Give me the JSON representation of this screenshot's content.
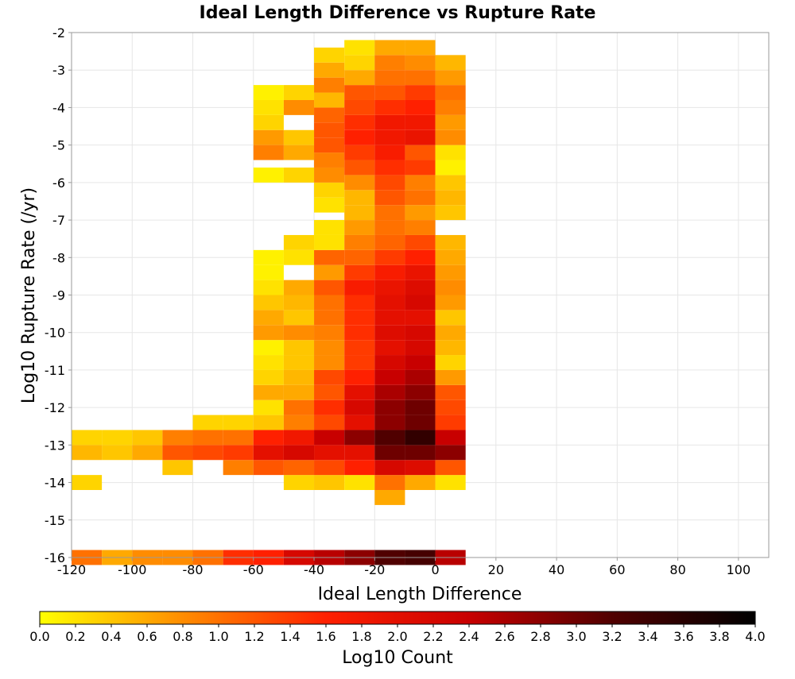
{
  "chart_data": {
    "type": "heatmap",
    "title": "Ideal Length Difference vs Rupture Rate",
    "xlabel": "Ideal Length Difference",
    "ylabel": "Log10 Rupture Rate (/yr)",
    "xlim": [
      -120,
      110
    ],
    "ylim": [
      -16,
      -2
    ],
    "x_ticks": [
      "-120",
      "-100",
      "-80",
      "-60",
      "-40",
      "-20",
      "0",
      "20",
      "40",
      "60",
      "80",
      "100"
    ],
    "y_ticks": [
      "-2",
      "-3",
      "-4",
      "-5",
      "-6",
      "-7",
      "-8",
      "-9",
      "-10",
      "-11",
      "-12",
      "-13",
      "-14",
      "-15",
      "-16"
    ],
    "grid": true,
    "bin_width_x": 10,
    "bin_height_y": 0.4,
    "colorbar": {
      "label": "Log10 Count",
      "range": [
        0,
        4
      ],
      "ticks": [
        "0.0",
        "0.2",
        "0.4",
        "0.6",
        "0.8",
        "1.0",
        "1.2",
        "1.4",
        "1.6",
        "1.8",
        "2.0",
        "2.2",
        "2.4",
        "2.6",
        "2.8",
        "3.0",
        "3.2",
        "3.4",
        "3.6",
        "3.8",
        "4.0"
      ],
      "colormap": [
        "#ffff00",
        "#ff8c00",
        "#ff2000",
        "#c80000",
        "#500000",
        "#000000"
      ]
    },
    "columns": [
      {
        "x": -115,
        "cells": [
          [
            -16.0,
            1.0
          ],
          [
            -14.0,
            0.3
          ],
          [
            -13.2,
            0.5
          ],
          [
            -12.8,
            0.3
          ]
        ]
      },
      {
        "x": -105,
        "cells": [
          [
            -16.0,
            0.6
          ],
          [
            -13.2,
            0.4
          ],
          [
            -12.8,
            0.3
          ]
        ]
      },
      {
        "x": -95,
        "cells": [
          [
            -16.0,
            0.8
          ],
          [
            -13.2,
            0.6
          ],
          [
            -12.8,
            0.4
          ]
        ]
      },
      {
        "x": -85,
        "cells": [
          [
            -16.0,
            0.8
          ],
          [
            -13.6,
            0.4
          ],
          [
            -13.2,
            1.2
          ],
          [
            -12.8,
            0.9
          ]
        ]
      },
      {
        "x": -75,
        "cells": [
          [
            -16.0,
            1.0
          ],
          [
            -13.2,
            1.3
          ],
          [
            -12.8,
            1.0
          ],
          [
            -12.4,
            0.3
          ]
        ]
      },
      {
        "x": -65,
        "cells": [
          [
            -16.0,
            1.5
          ],
          [
            -13.6,
            0.9
          ],
          [
            -13.2,
            1.4
          ],
          [
            -12.8,
            1.0
          ],
          [
            -12.4,
            0.3
          ]
        ]
      },
      {
        "x": -55,
        "cells": [
          [
            -16.0,
            1.6
          ],
          [
            -13.6,
            1.2
          ],
          [
            -13.2,
            2.0
          ],
          [
            -12.8,
            1.6
          ],
          [
            -12.4,
            0.4
          ],
          [
            -12.0,
            0.2
          ],
          [
            -11.6,
            0.6
          ],
          [
            -11.2,
            0.3
          ],
          [
            -10.8,
            0.2
          ],
          [
            -10.4,
            0.1
          ],
          [
            -10.0,
            0.7
          ],
          [
            -9.6,
            0.6
          ],
          [
            -9.2,
            0.4
          ],
          [
            -8.8,
            0.2
          ],
          [
            -8.4,
            0.1
          ],
          [
            -8.0,
            0.1
          ],
          [
            -5.8,
            0.1
          ],
          [
            -5.2,
            0.9
          ],
          [
            -4.8,
            0.7
          ],
          [
            -4.4,
            0.3
          ],
          [
            -4.0,
            0.2
          ],
          [
            -3.6,
            0.1
          ]
        ]
      },
      {
        "x": -45,
        "cells": [
          [
            -16.0,
            2.2
          ],
          [
            -14.0,
            0.3
          ],
          [
            -13.6,
            1.1
          ],
          [
            -13.2,
            2.2
          ],
          [
            -12.8,
            1.8
          ],
          [
            -12.4,
            0.9
          ],
          [
            -12.0,
            1.0
          ],
          [
            -11.6,
            0.6
          ],
          [
            -11.2,
            0.5
          ],
          [
            -10.8,
            0.4
          ],
          [
            -10.4,
            0.4
          ],
          [
            -10.0,
            0.8
          ],
          [
            -9.6,
            0.4
          ],
          [
            -9.2,
            0.5
          ],
          [
            -8.8,
            0.6
          ],
          [
            -8.0,
            0.2
          ],
          [
            -7.6,
            0.3
          ],
          [
            -5.8,
            0.3
          ],
          [
            -5.2,
            0.6
          ],
          [
            -4.8,
            0.4
          ],
          [
            -4.0,
            0.8
          ],
          [
            -3.6,
            0.3
          ]
        ]
      },
      {
        "x": -35,
        "cells": [
          [
            -16.0,
            2.5
          ],
          [
            -14.0,
            0.4
          ],
          [
            -13.6,
            1.3
          ],
          [
            -13.2,
            2.0
          ],
          [
            -12.8,
            2.4
          ],
          [
            -12.4,
            1.3
          ],
          [
            -12.0,
            1.5
          ],
          [
            -11.6,
            1.2
          ],
          [
            -11.2,
            1.3
          ],
          [
            -10.8,
            0.8
          ],
          [
            -10.4,
            0.8
          ],
          [
            -10.0,
            0.9
          ],
          [
            -9.6,
            1.0
          ],
          [
            -9.2,
            1.0
          ],
          [
            -8.8,
            1.2
          ],
          [
            -8.4,
            0.7
          ],
          [
            -8.0,
            1.1
          ],
          [
            -7.6,
            0.2
          ],
          [
            -7.2,
            0.2
          ],
          [
            -6.6,
            0.2
          ],
          [
            -6.2,
            0.3
          ],
          [
            -5.8,
            0.8
          ],
          [
            -5.4,
            0.9
          ],
          [
            -5.0,
            1.2
          ],
          [
            -4.6,
            1.2
          ],
          [
            -4.2,
            1.1
          ],
          [
            -3.8,
            0.5
          ],
          [
            -3.4,
            0.9
          ],
          [
            -3.0,
            0.6
          ],
          [
            -2.6,
            0.3
          ]
        ]
      },
      {
        "x": -25,
        "cells": [
          [
            -16.0,
            2.8
          ],
          [
            -14.0,
            0.2
          ],
          [
            -13.6,
            1.6
          ],
          [
            -13.2,
            2.0
          ],
          [
            -12.8,
            2.8
          ],
          [
            -12.4,
            2.0
          ],
          [
            -12.0,
            2.2
          ],
          [
            -11.6,
            2.0
          ],
          [
            -11.2,
            1.6
          ],
          [
            -10.8,
            1.4
          ],
          [
            -10.4,
            1.4
          ],
          [
            -10.0,
            1.5
          ],
          [
            -9.6,
            1.5
          ],
          [
            -9.2,
            1.5
          ],
          [
            -8.8,
            1.7
          ],
          [
            -8.4,
            1.4
          ],
          [
            -8.0,
            1.1
          ],
          [
            -7.6,
            0.9
          ],
          [
            -7.2,
            0.7
          ],
          [
            -6.8,
            0.5
          ],
          [
            -6.4,
            0.5
          ],
          [
            -6.0,
            0.8
          ],
          [
            -5.6,
            1.2
          ],
          [
            -5.2,
            1.4
          ],
          [
            -4.8,
            1.6
          ],
          [
            -4.4,
            1.5
          ],
          [
            -4.0,
            1.3
          ],
          [
            -3.6,
            1.2
          ],
          [
            -3.2,
            0.6
          ],
          [
            -2.8,
            0.3
          ],
          [
            -2.4,
            0.2
          ]
        ]
      },
      {
        "x": -15,
        "cells": [
          [
            -16.0,
            3.2
          ],
          [
            -14.4,
            0.6
          ],
          [
            -14.0,
            1.0
          ],
          [
            -13.6,
            2.2
          ],
          [
            -13.2,
            3.0
          ],
          [
            -12.8,
            3.2
          ],
          [
            -12.4,
            2.8
          ],
          [
            -12.0,
            2.8
          ],
          [
            -11.6,
            2.6
          ],
          [
            -11.2,
            2.4
          ],
          [
            -10.8,
            2.2
          ],
          [
            -10.4,
            2.0
          ],
          [
            -10.0,
            2.1
          ],
          [
            -9.6,
            2.0
          ],
          [
            -9.2,
            2.0
          ],
          [
            -8.8,
            1.9
          ],
          [
            -8.4,
            1.7
          ],
          [
            -8.0,
            1.4
          ],
          [
            -7.6,
            1.1
          ],
          [
            -7.2,
            1.0
          ],
          [
            -6.8,
            1.0
          ],
          [
            -6.4,
            1.2
          ],
          [
            -6.0,
            1.3
          ],
          [
            -5.6,
            1.5
          ],
          [
            -5.2,
            1.7
          ],
          [
            -4.8,
            1.8
          ],
          [
            -4.4,
            1.8
          ],
          [
            -4.0,
            1.5
          ],
          [
            -3.6,
            1.2
          ],
          [
            -3.2,
            1.0
          ],
          [
            -2.8,
            0.9
          ],
          [
            -2.4,
            0.6
          ]
        ]
      },
      {
        "x": -5,
        "cells": [
          [
            -16.0,
            3.3
          ],
          [
            -14.0,
            0.6
          ],
          [
            -13.6,
            2.1
          ],
          [
            -13.2,
            3.0
          ],
          [
            -12.8,
            3.5
          ],
          [
            -12.4,
            3.0
          ],
          [
            -12.0,
            3.0
          ],
          [
            -11.6,
            2.8
          ],
          [
            -11.2,
            2.6
          ],
          [
            -10.8,
            2.4
          ],
          [
            -10.4,
            2.2
          ],
          [
            -10.0,
            2.2
          ],
          [
            -9.6,
            2.0
          ],
          [
            -9.2,
            2.2
          ],
          [
            -8.8,
            2.1
          ],
          [
            -8.4,
            1.9
          ],
          [
            -8.0,
            1.6
          ],
          [
            -7.6,
            1.3
          ],
          [
            -7.2,
            0.9
          ],
          [
            -6.8,
            0.7
          ],
          [
            -6.4,
            1.0
          ],
          [
            -6.0,
            0.9
          ],
          [
            -5.6,
            1.4
          ],
          [
            -5.2,
            1.2
          ],
          [
            -4.8,
            1.9
          ],
          [
            -4.4,
            1.8
          ],
          [
            -4.0,
            1.6
          ],
          [
            -3.6,
            1.4
          ],
          [
            -3.2,
            1.0
          ],
          [
            -2.8,
            0.8
          ],
          [
            -2.4,
            0.6
          ]
        ]
      },
      {
        "x": 5,
        "cells": [
          [
            -16.0,
            2.5
          ],
          [
            -14.0,
            0.2
          ],
          [
            -13.6,
            1.2
          ],
          [
            -13.2,
            2.8
          ],
          [
            -12.8,
            2.4
          ],
          [
            -12.4,
            1.4
          ],
          [
            -12.0,
            1.3
          ],
          [
            -11.6,
            1.2
          ],
          [
            -11.2,
            0.7
          ],
          [
            -10.8,
            0.3
          ],
          [
            -10.4,
            0.5
          ],
          [
            -10.0,
            0.6
          ],
          [
            -9.6,
            0.4
          ],
          [
            -9.2,
            0.7
          ],
          [
            -8.8,
            0.8
          ],
          [
            -8.4,
            0.7
          ],
          [
            -8.0,
            0.6
          ],
          [
            -7.6,
            0.5
          ],
          [
            -6.8,
            0.4
          ],
          [
            -6.4,
            0.5
          ],
          [
            -6.0,
            0.4
          ],
          [
            -5.6,
            0.1
          ],
          [
            -5.2,
            0.2
          ],
          [
            -4.8,
            0.8
          ],
          [
            -4.4,
            0.7
          ],
          [
            -4.0,
            0.9
          ],
          [
            -3.6,
            1.0
          ],
          [
            -3.2,
            0.7
          ],
          [
            -2.8,
            0.5
          ]
        ]
      }
    ]
  }
}
